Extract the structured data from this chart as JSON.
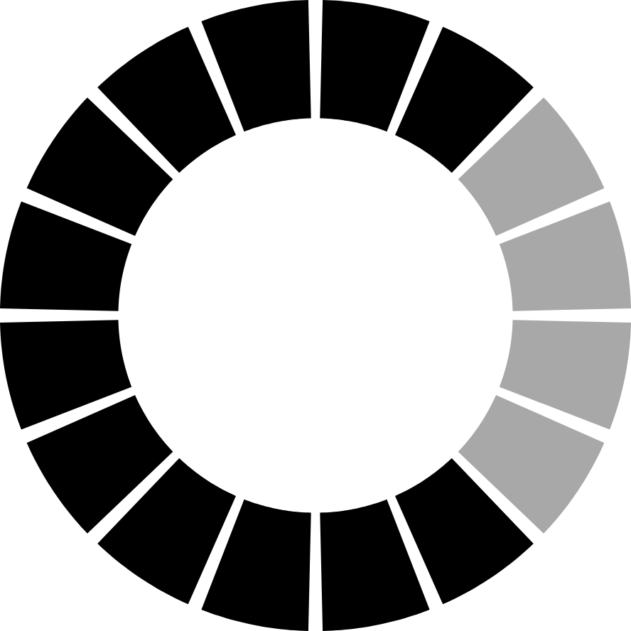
{
  "chart_data": {
    "type": "donut",
    "categories": [
      null,
      null,
      null,
      null,
      null,
      null,
      null,
      null,
      null,
      null,
      null,
      null,
      null,
      null,
      null,
      null
    ],
    "values": [
      6.25,
      6.25,
      6.25,
      6.25,
      6.25,
      6.25,
      6.25,
      6.25,
      6.25,
      6.25,
      6.25,
      6.25,
      6.25,
      6.25,
      6.25,
      6.25
    ],
    "colors": [
      "#000000",
      "#000000",
      "#000000",
      "#000000",
      "#a8a8a8",
      "#a8a8a8",
      "#a8a8a8",
      "#a8a8a8",
      "#000000",
      "#000000",
      "#000000",
      "#000000",
      "#000000",
      "#000000",
      "#000000",
      "#000000"
    ]
  }
}
